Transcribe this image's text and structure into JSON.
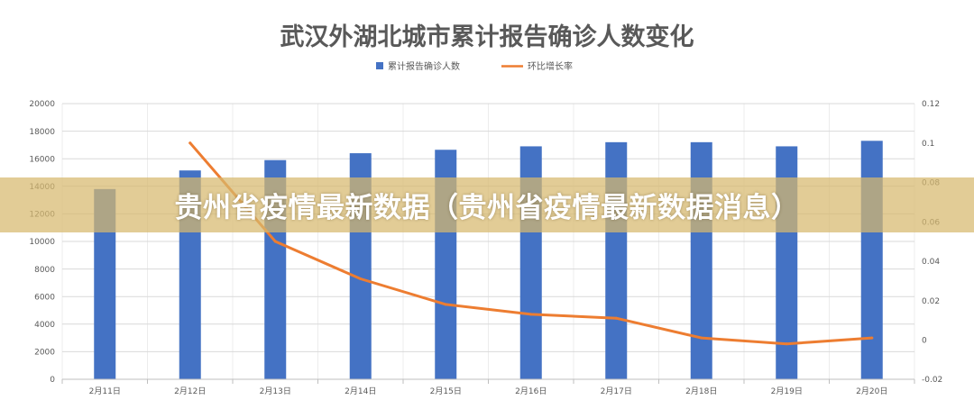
{
  "chart_data": {
    "type": "bar",
    "title": "武汉外湖北城市累计报告确诊人数变化",
    "xlabel": "",
    "ylabel": "",
    "categories": [
      "2月11日",
      "2月12日",
      "2月13日",
      "2月14日",
      "2月15日",
      "2月16日",
      "2月17日",
      "2月18日",
      "2月19日",
      "2月20日"
    ],
    "series": [
      {
        "name": "累计报告确诊人数",
        "type": "bar",
        "axis": "left",
        "color": "#4472c4",
        "values": [
          13800,
          15150,
          15900,
          16400,
          16650,
          16900,
          17200,
          17200,
          16900,
          17300
        ]
      },
      {
        "name": "环比增长率",
        "type": "line",
        "axis": "right",
        "color": "#ed7d31",
        "values": [
          null,
          0.1,
          0.05,
          0.031,
          0.018,
          0.013,
          0.011,
          0.001,
          -0.002,
          0.001
        ]
      }
    ],
    "y_axis": {
      "range": [
        0,
        20000
      ],
      "ticks": [
        "0",
        "2000",
        "4000",
        "6000",
        "8000",
        "10000",
        "12000",
        "14000",
        "16000",
        "18000",
        "20000"
      ]
    },
    "y2_axis": {
      "range": [
        -0.02,
        0.12
      ],
      "ticks": [
        "-0.02",
        "0",
        "0.02",
        "0.04",
        "0.06",
        "0.08",
        "0.1",
        "0.12"
      ]
    },
    "grid": true,
    "legend_position": "top"
  },
  "overlay": {
    "banner_text": "贵州省疫情最新数据（贵州省疫情最新数据消息）"
  },
  "colors": {
    "title": "#595959",
    "axis_text": "#595959",
    "gridline": "#d9d9d9",
    "banner_background": "rgba(215,185,110,0.72)",
    "banner_text": "#ffffff"
  }
}
